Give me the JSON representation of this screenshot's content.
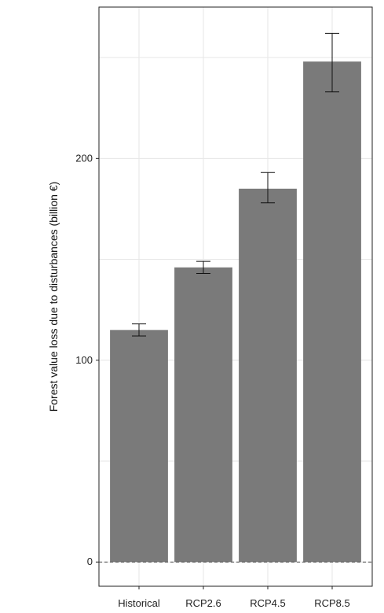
{
  "chart_data": {
    "type": "bar",
    "title": "",
    "xlabel": "",
    "ylabel": "Forest value loss due to disturbances (billion €)",
    "categories": [
      "Historical",
      "RCP2.6",
      "RCP4.5",
      "RCP8.5"
    ],
    "values": [
      115,
      146,
      185,
      248
    ],
    "error_low": [
      112,
      143,
      178,
      233
    ],
    "error_high": [
      118,
      149,
      193,
      262
    ],
    "ylim": [
      -12,
      275
    ],
    "yticks": [
      0,
      100,
      200
    ],
    "ytick_labels": [
      "0",
      "100",
      "200"
    ],
    "grid": true,
    "zero_line": "dashed",
    "bar_color": "#7a7a7a",
    "legend": "none"
  }
}
